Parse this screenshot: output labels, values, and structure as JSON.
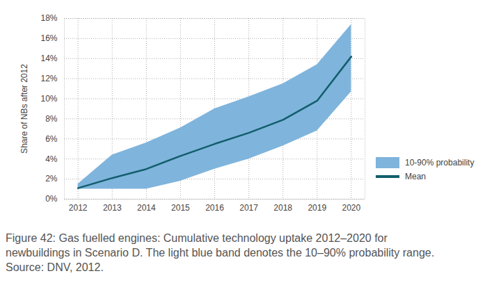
{
  "chart_data": {
    "type": "line",
    "caption": "Figure 42: Gas fuelled engines: Cumulative technology uptake 2012–2020 for newbuildings in Scenario D. The light blue band denotes the 10–90% probability range. Source: DNV, 2012.",
    "y_label": "Share of NBs after 2012",
    "x": [
      2012,
      2013,
      2014,
      2015,
      2016,
      2017,
      2018,
      2019,
      2020
    ],
    "series": [
      {
        "name": "10-90% probability",
        "type": "area",
        "color": "#7fb4dc",
        "lower": [
          1.0,
          1.0,
          1.0,
          1.8,
          3.0,
          4.0,
          5.3,
          6.8,
          10.7
        ],
        "upper": [
          1.5,
          4.4,
          5.6,
          7.1,
          9.0,
          10.2,
          11.5,
          13.4,
          17.4
        ]
      },
      {
        "name": "Mean",
        "type": "line",
        "color": "#125e6c",
        "values": [
          1.1,
          2.1,
          3.0,
          4.3,
          5.5,
          6.6,
          7.9,
          9.8,
          14.2
        ]
      }
    ],
    "xlim": [
      2011.6,
      2020.4
    ],
    "xticks": [
      2012,
      2013,
      2014,
      2015,
      2016,
      2017,
      2018,
      2019,
      2020
    ],
    "ylim": [
      0,
      18
    ],
    "yticks": [
      {
        "value": 0,
        "label": "0%"
      },
      {
        "value": 2,
        "label": "2%"
      },
      {
        "value": 4,
        "label": "4%"
      },
      {
        "value": 6,
        "label": "6%"
      },
      {
        "value": 8,
        "label": "8%"
      },
      {
        "value": 10,
        "label": "10%"
      },
      {
        "value": 12,
        "label": "12%"
      },
      {
        "value": 14,
        "label": "14%"
      },
      {
        "value": 16,
        "label": "16%"
      },
      {
        "value": 18,
        "label": "18%"
      }
    ],
    "grid": true,
    "legend": "bottom-right"
  }
}
